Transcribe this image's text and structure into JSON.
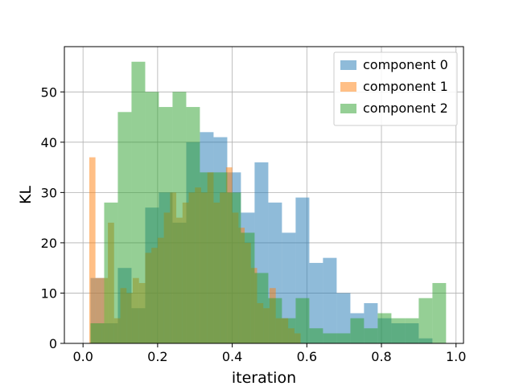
{
  "chart_data": {
    "type": "bar",
    "subtype": "overlapping-histogram",
    "title": "",
    "xlabel": "iteration",
    "ylabel": "KL",
    "xlim": [
      -0.05,
      1.02
    ],
    "ylim": [
      0,
      59
    ],
    "xticks": [
      0.0,
      0.2,
      0.4,
      0.6,
      0.8,
      1.0
    ],
    "xtick_labels": [
      "0.0",
      "0.2",
      "0.4",
      "0.6",
      "0.8",
      "1.0"
    ],
    "yticks": [
      0,
      10,
      20,
      30,
      40,
      50
    ],
    "ytick_labels": [
      "0",
      "10",
      "20",
      "30",
      "40",
      "50"
    ],
    "grid": true,
    "legend_position": "top-right",
    "bar_opacity": 0.5,
    "series": [
      {
        "name": "component 0",
        "color": "#1f77b4",
        "bin_edges": [
          0.02,
          0.0567,
          0.0933,
          0.13,
          0.1667,
          0.2033,
          0.24,
          0.2767,
          0.3133,
          0.35,
          0.3867,
          0.4233,
          0.46,
          0.4967,
          0.5333,
          0.57,
          0.6067,
          0.6433,
          0.68,
          0.7167,
          0.7533,
          0.79,
          0.8267,
          0.8633,
          0.9,
          0.9367,
          0.9733
        ],
        "counts": [
          13,
          4,
          15,
          7,
          27,
          30,
          24,
          40,
          42,
          41,
          34,
          26,
          36,
          28,
          22,
          29,
          16,
          17,
          10,
          6,
          8,
          5,
          4,
          4,
          1,
          0
        ]
      },
      {
        "name": "component 1",
        "color": "#ff7f0e",
        "bin_edges": [
          0.0,
          0.0167,
          0.0333,
          0.05,
          0.0667,
          0.0833,
          0.1,
          0.1167,
          0.1333,
          0.15,
          0.1667,
          0.1833,
          0.2,
          0.2167,
          0.2333,
          0.25,
          0.2667,
          0.2833,
          0.3,
          0.3167,
          0.3333,
          0.35,
          0.3667,
          0.3833,
          0.4,
          0.4167,
          0.4333,
          0.45,
          0.4667,
          0.4833,
          0.5,
          0.5167,
          0.5333,
          0.55,
          0.5667,
          0.5833,
          0.6
        ],
        "counts": [
          0,
          37,
          13,
          13,
          24,
          5,
          11,
          10,
          13,
          12,
          18,
          19,
          21,
          26,
          30,
          25,
          28,
          30,
          31,
          30,
          34,
          28,
          30,
          35,
          26,
          23,
          20,
          15,
          8,
          7,
          11,
          5,
          5,
          3,
          2,
          0
        ]
      },
      {
        "name": "component 2",
        "color": "#2ca02c",
        "bin_edges": [
          0.02,
          0.0567,
          0.0933,
          0.13,
          0.1667,
          0.2033,
          0.24,
          0.2767,
          0.3133,
          0.35,
          0.3867,
          0.4233,
          0.46,
          0.4967,
          0.5333,
          0.57,
          0.6067,
          0.6433,
          0.68,
          0.7167,
          0.7533,
          0.79,
          0.8267,
          0.8633,
          0.9,
          0.9367,
          0.9733
        ],
        "counts": [
          4,
          28,
          46,
          56,
          50,
          47,
          50,
          47,
          34,
          34,
          30,
          22,
          14,
          9,
          5,
          9,
          3,
          2,
          2,
          5,
          3,
          6,
          5,
          5,
          9,
          12
        ]
      }
    ]
  }
}
